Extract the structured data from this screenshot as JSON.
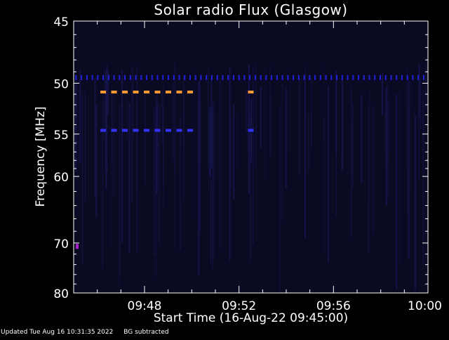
{
  "chart_data": {
    "type": "heatmap",
    "title": "Solar radio Flux (Glasgow)",
    "xlabel": "Start Time (16-Aug-22 09:45:00)",
    "ylabel": "Frequency [MHz]",
    "x_ticks": [
      "09:48",
      "09:52",
      "09:56",
      "10:00"
    ],
    "x_tick_minutes": [
      3,
      7,
      11,
      15
    ],
    "xlim_minutes": [
      0,
      15
    ],
    "y_ticks": [
      45,
      50,
      55,
      60,
      70,
      80
    ],
    "ylim": [
      45,
      80
    ],
    "y_scale": "reciprocal",
    "background_color": "#0a0a22",
    "features": [
      {
        "name": "persistent-line",
        "freq": 49.5,
        "minute_start": 0.1,
        "minute_end": 14.9,
        "step": 0.23,
        "color": "#2222dd"
      },
      {
        "name": "burst-a",
        "freq": 50.8,
        "minute_start": 1.25,
        "minute_end": 5.0,
        "step": 0.46,
        "color": "#ff9933"
      },
      {
        "name": "burst-b",
        "freq": 50.8,
        "minute_start": 7.5,
        "minute_end": 7.75,
        "step": 0.46,
        "color": "#ff9933"
      },
      {
        "name": "burst-c",
        "freq": 54.6,
        "minute_start": 1.25,
        "minute_end": 5.0,
        "step": 0.46,
        "color": "#3333ff"
      },
      {
        "name": "burst-d",
        "freq": 54.6,
        "minute_start": 7.5,
        "minute_end": 7.75,
        "step": 0.46,
        "color": "#3333ff"
      },
      {
        "name": "spot",
        "freq": 70.6,
        "minute_start": 0.15,
        "minute_end": 0.3,
        "step": 1,
        "color": "#aa22cc"
      }
    ]
  },
  "footer": {
    "updated": "Updated Tue Aug 16 10:31:35 2022",
    "note": "BG subtracted"
  }
}
